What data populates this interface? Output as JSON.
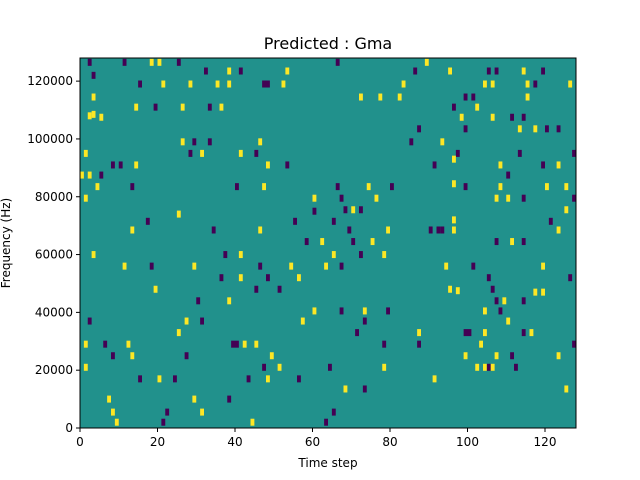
{
  "chart_data": {
    "type": "heatmap",
    "title": "Predicted : Gma",
    "xlabel": "Time step",
    "ylabel": "Frequency (Hz)",
    "xlim": [
      0,
      128
    ],
    "ylim": [
      0,
      128000
    ],
    "x_ticks": [
      0,
      20,
      40,
      60,
      80,
      100,
      120
    ],
    "y_ticks": [
      0,
      20000,
      40000,
      60000,
      80000,
      100000,
      120000
    ],
    "colormap": "viridis",
    "colors": {
      "background": "#21918c",
      "high": "#fde725",
      "low": "#440154"
    },
    "grid": false,
    "cells": [
      [
        2,
        126500,
        "low"
      ],
      [
        11,
        126500,
        "low"
      ],
      [
        18,
        126500,
        "high"
      ],
      [
        20,
        126500,
        "high"
      ],
      [
        25,
        126500,
        "low"
      ],
      [
        66,
        126500,
        "low"
      ],
      [
        89,
        126500,
        "high"
      ],
      [
        3,
        122000,
        "low"
      ],
      [
        32,
        123500,
        "low"
      ],
      [
        38,
        123500,
        "high"
      ],
      [
        41,
        123500,
        "low"
      ],
      [
        53,
        123500,
        "high"
      ],
      [
        86,
        123500,
        "low"
      ],
      [
        95,
        123500,
        "high"
      ],
      [
        105,
        123500,
        "low"
      ],
      [
        107,
        123500,
        "low"
      ],
      [
        114,
        123500,
        "high"
      ],
      [
        119,
        123500,
        "low"
      ],
      [
        15,
        119000,
        "low"
      ],
      [
        21,
        119000,
        "high"
      ],
      [
        28,
        119000,
        "high"
      ],
      [
        35,
        119000,
        "high"
      ],
      [
        38,
        119000,
        "high"
      ],
      [
        47,
        119000,
        "low"
      ],
      [
        48,
        119000,
        "low"
      ],
      [
        52,
        119000,
        "high"
      ],
      [
        83,
        119000,
        "high"
      ],
      [
        104,
        119000,
        "high"
      ],
      [
        106,
        119000,
        "high"
      ],
      [
        115,
        119000,
        "high"
      ],
      [
        117,
        119000,
        "low"
      ],
      [
        126,
        119000,
        "high"
      ],
      [
        3,
        114500,
        "high"
      ],
      [
        72,
        114500,
        "high"
      ],
      [
        77,
        114500,
        "high"
      ],
      [
        82,
        114500,
        "high"
      ],
      [
        99,
        114500,
        "low"
      ],
      [
        101,
        114500,
        "low"
      ],
      [
        115,
        114500,
        "high"
      ],
      [
        2,
        108000,
        "high"
      ],
      [
        3,
        108500,
        "high"
      ],
      [
        5,
        107500,
        "high"
      ],
      [
        14,
        111000,
        "high"
      ],
      [
        19,
        111000,
        "low"
      ],
      [
        26,
        111000,
        "high"
      ],
      [
        33,
        111000,
        "low"
      ],
      [
        36,
        111000,
        "high"
      ],
      [
        96,
        111000,
        "low"
      ],
      [
        98,
        107500,
        "high"
      ],
      [
        102,
        111000,
        "high"
      ],
      [
        106,
        107500,
        "high"
      ],
      [
        111,
        107500,
        "low"
      ],
      [
        114,
        107500,
        "low"
      ],
      [
        87,
        103500,
        "low"
      ],
      [
        99,
        103500,
        "low"
      ],
      [
        113,
        103500,
        "high"
      ],
      [
        117,
        103500,
        "high"
      ],
      [
        120,
        103500,
        "low"
      ],
      [
        123,
        103500,
        "low"
      ],
      [
        26,
        99000,
        "high"
      ],
      [
        29,
        99000,
        "low"
      ],
      [
        33,
        99000,
        "low"
      ],
      [
        46,
        99000,
        "high"
      ],
      [
        93,
        99000,
        "high"
      ],
      [
        85,
        99000,
        "low"
      ],
      [
        1,
        95000,
        "high"
      ],
      [
        28,
        95000,
        "low"
      ],
      [
        31,
        95000,
        "high"
      ],
      [
        41,
        95000,
        "high"
      ],
      [
        45,
        95000,
        "low"
      ],
      [
        97,
        95000,
        "low"
      ],
      [
        113,
        95000,
        "low"
      ],
      [
        127,
        95000,
        "low"
      ],
      [
        8,
        91000,
        "low"
      ],
      [
        10,
        91000,
        "low"
      ],
      [
        14,
        91000,
        "high"
      ],
      [
        48,
        91000,
        "high"
      ],
      [
        53,
        91000,
        "low"
      ],
      [
        91,
        91000,
        "low"
      ],
      [
        96,
        93000,
        "high"
      ],
      [
        108,
        91000,
        "high"
      ],
      [
        119,
        91000,
        "low"
      ],
      [
        123,
        91000,
        "high"
      ],
      [
        0,
        87500,
        "high"
      ],
      [
        2,
        87500,
        "high"
      ],
      [
        5,
        87500,
        "low"
      ],
      [
        110,
        87500,
        "low"
      ],
      [
        4,
        83500,
        "high"
      ],
      [
        13,
        83500,
        "low"
      ],
      [
        40,
        83500,
        "low"
      ],
      [
        47,
        83500,
        "high"
      ],
      [
        66,
        83500,
        "low"
      ],
      [
        74,
        83500,
        "high"
      ],
      [
        80,
        83500,
        "low"
      ],
      [
        96,
        84500,
        "high"
      ],
      [
        99,
        83500,
        "low"
      ],
      [
        108,
        83500,
        "high"
      ],
      [
        120,
        83500,
        "high"
      ],
      [
        125,
        83500,
        "high"
      ],
      [
        1,
        79500,
        "high"
      ],
      [
        60,
        79500,
        "high"
      ],
      [
        67,
        79500,
        "low"
      ],
      [
        76,
        79500,
        "high"
      ],
      [
        107,
        79500,
        "high"
      ],
      [
        110,
        79500,
        "high"
      ],
      [
        114,
        79500,
        "low"
      ],
      [
        127,
        79500,
        "low"
      ],
      [
        25,
        74000,
        "high"
      ],
      [
        17,
        71500,
        "low"
      ],
      [
        55,
        71500,
        "low"
      ],
      [
        60,
        75000,
        "low"
      ],
      [
        65,
        71500,
        "low"
      ],
      [
        68,
        75500,
        "low"
      ],
      [
        70,
        75500,
        "high"
      ],
      [
        72,
        75500,
        "low"
      ],
      [
        96,
        72000,
        "high"
      ],
      [
        121,
        71500,
        "low"
      ],
      [
        125,
        75500,
        "high"
      ],
      [
        13,
        68500,
        "high"
      ],
      [
        34,
        68500,
        "low"
      ],
      [
        46,
        68500,
        "high"
      ],
      [
        69,
        68500,
        "low"
      ],
      [
        79,
        68500,
        "high"
      ],
      [
        90,
        68500,
        "low"
      ],
      [
        92,
        68500,
        "low"
      ],
      [
        93,
        68500,
        "low"
      ],
      [
        96,
        68500,
        "high"
      ],
      [
        123,
        68500,
        "high"
      ],
      [
        58,
        64500,
        "low"
      ],
      [
        62,
        64500,
        "high"
      ],
      [
        70,
        64500,
        "low"
      ],
      [
        75,
        64500,
        "high"
      ],
      [
        107,
        64500,
        "low"
      ],
      [
        111,
        64500,
        "high"
      ],
      [
        114,
        64500,
        "low"
      ],
      [
        3,
        60000,
        "high"
      ],
      [
        37,
        60000,
        "low"
      ],
      [
        41,
        60000,
        "high"
      ],
      [
        65,
        60000,
        "high"
      ],
      [
        72,
        60000,
        "low"
      ],
      [
        78,
        60000,
        "high"
      ],
      [
        11,
        56000,
        "high"
      ],
      [
        18,
        56000,
        "low"
      ],
      [
        29,
        56000,
        "high"
      ],
      [
        46,
        56000,
        "low"
      ],
      [
        54,
        56000,
        "high"
      ],
      [
        63,
        56000,
        "high"
      ],
      [
        67,
        56000,
        "low"
      ],
      [
        94,
        56000,
        "high"
      ],
      [
        101,
        56000,
        "low"
      ],
      [
        119,
        56000,
        "high"
      ],
      [
        36,
        52000,
        "low"
      ],
      [
        41,
        52000,
        "high"
      ],
      [
        48,
        52000,
        "low"
      ],
      [
        56,
        52000,
        "high"
      ],
      [
        105,
        52000,
        "low"
      ],
      [
        126,
        52000,
        "low"
      ],
      [
        19,
        48000,
        "high"
      ],
      [
        45,
        48000,
        "low"
      ],
      [
        51,
        48000,
        "low"
      ],
      [
        95,
        48000,
        "high"
      ],
      [
        97,
        47500,
        "high"
      ],
      [
        106,
        48000,
        "low"
      ],
      [
        117,
        47000,
        "high"
      ],
      [
        119,
        47000,
        "high"
      ],
      [
        30,
        44000,
        "low"
      ],
      [
        38,
        44000,
        "high"
      ],
      [
        107,
        44000,
        "low"
      ],
      [
        109,
        44000,
        "high"
      ],
      [
        114,
        44000,
        "low"
      ],
      [
        60,
        40500,
        "high"
      ],
      [
        67,
        40500,
        "low"
      ],
      [
        73,
        40500,
        "high"
      ],
      [
        79,
        40500,
        "low"
      ],
      [
        104,
        40500,
        "high"
      ],
      [
        108,
        40500,
        "low"
      ],
      [
        2,
        37000,
        "low"
      ],
      [
        27,
        37000,
        "high"
      ],
      [
        31,
        37000,
        "low"
      ],
      [
        57,
        37000,
        "high"
      ],
      [
        73,
        37000,
        "low"
      ],
      [
        110,
        37000,
        "high"
      ],
      [
        25,
        33000,
        "high"
      ],
      [
        71,
        33000,
        "low"
      ],
      [
        87,
        33000,
        "high"
      ],
      [
        99,
        33000,
        "low"
      ],
      [
        100,
        33000,
        "low"
      ],
      [
        104,
        33000,
        "high"
      ],
      [
        114,
        33000,
        "low"
      ],
      [
        116,
        33000,
        "high"
      ],
      [
        1,
        29000,
        "high"
      ],
      [
        6,
        29000,
        "low"
      ],
      [
        12,
        29000,
        "high"
      ],
      [
        39,
        29000,
        "low"
      ],
      [
        40,
        29000,
        "low"
      ],
      [
        42,
        29000,
        "high"
      ],
      [
        45,
        29000,
        "high"
      ],
      [
        78,
        29000,
        "low"
      ],
      [
        87,
        29000,
        "low"
      ],
      [
        103,
        29000,
        "high"
      ],
      [
        127,
        29000,
        "low"
      ],
      [
        8,
        25000,
        "low"
      ],
      [
        13,
        25000,
        "high"
      ],
      [
        27,
        25000,
        "low"
      ],
      [
        49,
        25000,
        "high"
      ],
      [
        99,
        25000,
        "high"
      ],
      [
        107,
        25000,
        "high"
      ],
      [
        111,
        25000,
        "low"
      ],
      [
        123,
        25000,
        "high"
      ],
      [
        1,
        21000,
        "high"
      ],
      [
        47,
        21000,
        "low"
      ],
      [
        51,
        21000,
        "high"
      ],
      [
        64,
        21000,
        "low"
      ],
      [
        78,
        21000,
        "high"
      ],
      [
        102,
        21000,
        "high"
      ],
      [
        104,
        21000,
        "high"
      ],
      [
        105,
        21000,
        "low"
      ],
      [
        106,
        21000,
        "high"
      ],
      [
        112,
        21000,
        "low"
      ],
      [
        15,
        17000,
        "low"
      ],
      [
        20,
        17000,
        "high"
      ],
      [
        24,
        17000,
        "low"
      ],
      [
        43,
        17000,
        "low"
      ],
      [
        48,
        17000,
        "high"
      ],
      [
        56,
        17000,
        "low"
      ],
      [
        91,
        17000,
        "high"
      ],
      [
        68,
        13500,
        "high"
      ],
      [
        73,
        13500,
        "low"
      ],
      [
        125,
        13500,
        "high"
      ],
      [
        7,
        10000,
        "high"
      ],
      [
        29,
        10000,
        "high"
      ],
      [
        38,
        10000,
        "low"
      ],
      [
        8,
        5500,
        "high"
      ],
      [
        22,
        5500,
        "low"
      ],
      [
        31,
        5500,
        "high"
      ],
      [
        65,
        5500,
        "low"
      ],
      [
        9,
        2000,
        "high"
      ],
      [
        21,
        2000,
        "low"
      ],
      [
        44,
        2000,
        "high"
      ],
      [
        63,
        2000,
        "low"
      ]
    ]
  }
}
